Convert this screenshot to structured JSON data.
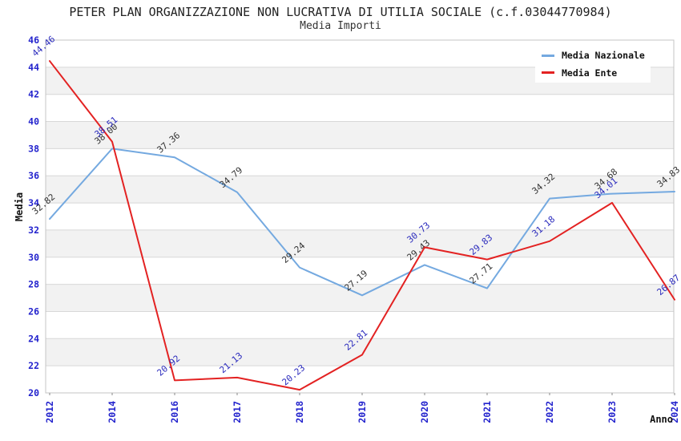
{
  "chart_data": {
    "type": "line",
    "title": "PETER PLAN ORGANIZZAZIONE NON LUCRATIVA DI UTILIA SOCIALE (c.f.03044770984)",
    "subtitle": "Media Importi",
    "xlabel": "Anno",
    "ylabel": "Media",
    "ylim": [
      20,
      46
    ],
    "ytick_step": 2,
    "grid": true,
    "legend_position": "top-right",
    "categories": [
      "2012",
      "2014",
      "2016",
      "2017",
      "2018",
      "2019",
      "2020",
      "2021",
      "2022",
      "2023",
      "2024"
    ],
    "series": [
      {
        "name": "Media Nazionale",
        "color": "#74a9e0",
        "label_color": "#333333",
        "values": [
          32.82,
          38.0,
          37.36,
          34.79,
          29.24,
          27.19,
          29.43,
          27.71,
          34.32,
          34.68,
          34.83
        ]
      },
      {
        "name": "Media Ente",
        "color": "#e32222",
        "label_color": "#2b2bbd",
        "values": [
          44.46,
          38.51,
          20.92,
          21.13,
          20.23,
          22.81,
          30.73,
          29.83,
          31.18,
          34.01,
          26.87
        ]
      }
    ],
    "colors": {
      "tick_text": "#2323cd",
      "band_white": "#ffffff",
      "band_gray": "#f2f2f2",
      "gridline": "#d8d8d8",
      "plot_border": "#c4c4c4",
      "tick_mark": "#888888"
    }
  }
}
